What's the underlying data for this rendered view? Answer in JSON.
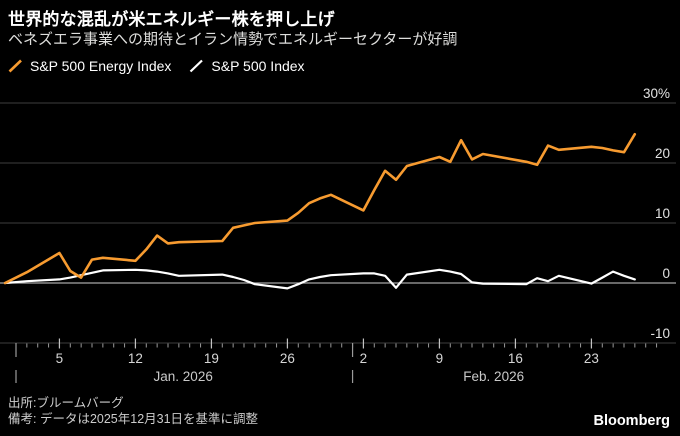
{
  "header": {
    "title": "世界的な混乱が米エネルギー株を押し上げ",
    "subtitle": "ベネズエラ事業への期待とイラン情勢でエネルギーセクターが好調"
  },
  "legend": [
    {
      "label": "S&P 500 Energy Index",
      "color": "#F79B30"
    },
    {
      "label": "S&P 500 Index",
      "color": "#FFFFFF"
    }
  ],
  "footer": {
    "source": "出所:ブルームバーグ",
    "note": "備考: データは2025年12月31日を基準に調整",
    "brand": "Bloomberg"
  },
  "chart_data": {
    "type": "line",
    "title": "世界的な混乱が米エネルギー株を押し上げ",
    "unit": "%",
    "baseline_note": "indexed to 2025-12-31 = 0%",
    "x_dates": [
      "12/31",
      "1/2",
      "1/5",
      "1/6",
      "1/7",
      "1/8",
      "1/9",
      "1/12",
      "1/13",
      "1/14",
      "1/15",
      "1/16",
      "1/20",
      "1/21",
      "1/22",
      "1/23",
      "1/26",
      "1/27",
      "1/28",
      "1/29",
      "1/30",
      "2/2",
      "2/3",
      "2/4",
      "2/5",
      "2/6",
      "2/9",
      "2/10",
      "2/11",
      "2/12",
      "2/13",
      "2/17",
      "2/18",
      "2/19",
      "2/20",
      "2/23",
      "2/24",
      "2/25",
      "2/26",
      "2/27"
    ],
    "t_days_from_jan1": [
      -1,
      1,
      4,
      5,
      6,
      7,
      8,
      11,
      12,
      13,
      14,
      15,
      19,
      20,
      21,
      22,
      25,
      26,
      27,
      28,
      29,
      32,
      33,
      34,
      35,
      36,
      39,
      40,
      41,
      42,
      43,
      47,
      48,
      49,
      50,
      53,
      54,
      55,
      56,
      57
    ],
    "series": [
      {
        "name": "S&P 500 Energy Index",
        "color": "#F79B30",
        "width": 2.6,
        "values": [
          0,
          1.8,
          5.0,
          2.0,
          0.9,
          3.9,
          4.2,
          3.7,
          5.6,
          7.9,
          6.6,
          6.8,
          7.0,
          9.2,
          9.6,
          10.0,
          10.4,
          11.7,
          13.3,
          14.1,
          14.7,
          12.1,
          15.5,
          18.7,
          17.2,
          19.5,
          21.0,
          20.2,
          23.8,
          20.6,
          21.5,
          20.2,
          19.7,
          22.9,
          22.2,
          22.7,
          22.5,
          22.1,
          21.8,
          24.8
        ]
      },
      {
        "name": "S&P 500 Index",
        "color": "#FFFFFF",
        "width": 2.2,
        "values": [
          0,
          0.3,
          0.6,
          0.9,
          1.3,
          1.7,
          2.1,
          2.2,
          2.1,
          1.9,
          1.6,
          1.2,
          1.4,
          1.0,
          0.5,
          -0.2,
          -0.9,
          -0.2,
          0.6,
          1.0,
          1.3,
          1.6,
          1.6,
          1.2,
          -0.8,
          1.4,
          2.2,
          1.9,
          1.5,
          0.1,
          -0.1,
          -0.2,
          0.8,
          0.3,
          1.2,
          -0.1,
          0.9,
          1.9,
          1.2,
          0.6
        ]
      }
    ],
    "y_axis": {
      "side": "right",
      "ticks": [
        {
          "v": 30,
          "label": "30%"
        },
        {
          "v": 20,
          "label": "20"
        },
        {
          "v": 10,
          "label": "10"
        },
        {
          "v": 0,
          "label": "0"
        },
        {
          "v": -10,
          "label": "-10"
        }
      ],
      "range": [
        -10,
        30
      ]
    },
    "x_axis": {
      "major_ticks": [
        {
          "t": 4,
          "label": "5"
        },
        {
          "t": 11,
          "label": "12"
        },
        {
          "t": 18,
          "label": "19"
        },
        {
          "t": 25,
          "label": "26"
        },
        {
          "t": 32,
          "label": "2"
        },
        {
          "t": 39,
          "label": "9"
        },
        {
          "t": 46,
          "label": "16"
        },
        {
          "t": 53,
          "label": "23"
        }
      ],
      "minor_tick_day_range": [
        0,
        59
      ],
      "months": [
        {
          "label": "Jan. 2026",
          "sep_t": 0,
          "center_t": 15.4
        },
        {
          "label": "Feb. 2026",
          "sep_t": 31,
          "center_t": 44.0
        }
      ]
    },
    "style": {
      "grid_color": "#3E3E3E",
      "zero_line_color": "#A6A6A6",
      "tick_color": "#9B9B9B",
      "y_label_color": "#E3E3E3",
      "x_label_color": "#D6D6D6",
      "month_label_color": "#C9C9C9",
      "background": "#000000"
    },
    "grid": true,
    "legend_position": "top-left"
  }
}
